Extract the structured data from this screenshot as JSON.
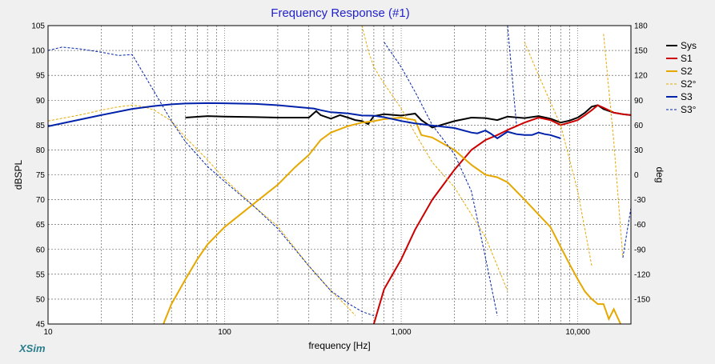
{
  "window": {
    "title": "Frequency Response (#1)",
    "brand": "XSim"
  },
  "chart_data": {
    "type": "line",
    "title": "Frequency Response (#1)",
    "xlabel": "frequency [Hz]",
    "ylabel": "dBSPL",
    "y2label": "deg",
    "xscale": "log",
    "xlim": [
      10,
      20000
    ],
    "ylim": [
      45,
      105
    ],
    "y2lim": [
      -180,
      180
    ],
    "grid": true,
    "legend_position": "right",
    "x_tick_labels": [
      {
        "x": 10,
        "label": "10"
      },
      {
        "x": 100,
        "label": "100"
      },
      {
        "x": 1000,
        "label": "1,000"
      },
      {
        "x": 10000,
        "label": "10,000"
      }
    ],
    "y_ticks": [
      45,
      50,
      55,
      60,
      65,
      70,
      75,
      80,
      85,
      90,
      95,
      100,
      105
    ],
    "y2_ticks": [
      -150,
      -120,
      -90,
      -60,
      -30,
      0,
      30,
      60,
      90,
      120,
      150,
      180
    ],
    "series": [
      {
        "name": "Sys",
        "color": "#000000",
        "style": "solid",
        "axis": "left",
        "x": [
          10,
          20,
          40,
          60,
          80,
          100,
          150,
          200,
          300,
          330,
          350,
          400,
          450,
          500,
          550,
          600,
          650,
          700,
          800,
          1000,
          1200,
          1300,
          1500,
          2000,
          2500,
          3000,
          3500,
          4000,
          5000,
          6000,
          7000,
          8000,
          9000,
          10000,
          11000,
          12000,
          13000,
          14000,
          16000,
          18000,
          20000
        ],
        "y": [
          null,
          null,
          null,
          86.5,
          86.8,
          86.7,
          86.6,
          86.5,
          86.5,
          87.8,
          87.0,
          86.3,
          87.0,
          86.5,
          86.0,
          85.8,
          85.2,
          86.8,
          87.2,
          86.9,
          87.3,
          86.0,
          84.5,
          85.8,
          86.5,
          86.4,
          86.0,
          86.7,
          86.4,
          86.8,
          86.3,
          85.5,
          85.9,
          86.5,
          87.5,
          88.7,
          89.0,
          88.2,
          87.5,
          87.2,
          87.0
        ]
      },
      {
        "name": "S1",
        "color": "#cc0000",
        "style": "solid",
        "axis": "left",
        "x": [
          700,
          800,
          1000,
          1200,
          1500,
          2000,
          2500,
          3000,
          3500,
          4000,
          5000,
          6000,
          7000,
          8000,
          9000,
          10000,
          11000,
          12000,
          13000,
          14000,
          16000,
          18000,
          20000
        ],
        "y": [
          45,
          52,
          58,
          64,
          70,
          76,
          80,
          82,
          83,
          84,
          85.5,
          86.5,
          86,
          85,
          85.5,
          86,
          87,
          88,
          89,
          88.5,
          87.5,
          87.2,
          87
        ]
      },
      {
        "name": "S2",
        "color": "#e6a800",
        "style": "solid",
        "axis": "left",
        "x": [
          45,
          50,
          60,
          70,
          80,
          100,
          150,
          200,
          250,
          300,
          350,
          400,
          500,
          600,
          700,
          800,
          1000,
          1200,
          1300,
          1500,
          2000,
          2500,
          3000,
          3500,
          4000,
          5000,
          6000,
          7000,
          8000,
          9000,
          10000,
          11000,
          12000,
          13000,
          14000,
          15000,
          16000,
          18000,
          20000
        ],
        "y": [
          45,
          49,
          54,
          58,
          61,
          64.5,
          69.5,
          73,
          76.5,
          79,
          82,
          83.5,
          84.8,
          85.5,
          85.8,
          86.2,
          86.5,
          86,
          83,
          82.5,
          80,
          77,
          75,
          74.5,
          73.5,
          70,
          67,
          64.5,
          60.5,
          57,
          54,
          51.5,
          50,
          49,
          49,
          46,
          48,
          44,
          41
        ]
      },
      {
        "name": "S2°",
        "color": "#e6a800",
        "style": "dashed",
        "axis": "right",
        "x": [
          10,
          15,
          20,
          25,
          30,
          35,
          40,
          50,
          60,
          80,
          100,
          150,
          200,
          300,
          400,
          500,
          550,
          600,
          650,
          700,
          800,
          1000,
          1200,
          1500,
          2000,
          3000,
          4000,
          5000,
          6000,
          8000,
          10000,
          12000,
          14000,
          16000,
          18000,
          20000
        ],
        "y": [
          65,
          72,
          78,
          82,
          84,
          82,
          78,
          65,
          45,
          18,
          -5,
          -40,
          -62,
          -110,
          -140,
          -160,
          -170,
          180,
          150,
          130,
          110,
          80,
          50,
          15,
          -15,
          -75,
          -140,
          160,
          120,
          60,
          -20,
          -110,
          170,
          40,
          -100,
          160
        ]
      },
      {
        "name": "S3",
        "color": "#0022aa",
        "style": "solid",
        "axis": "right",
        "x": [
          10,
          20,
          30,
          40,
          50,
          60,
          80,
          100,
          150,
          200,
          250,
          300,
          320,
          350,
          400,
          500,
          600,
          700,
          800,
          1000,
          1200,
          1500,
          2000,
          2500,
          2700,
          3000,
          3200,
          3500,
          4000,
          4500,
          5000,
          5500,
          6000,
          6500,
          7000,
          8000
        ],
        "y": [
          58.5,
          72,
          79.5,
          83,
          85,
          86,
          86.5,
          86.3,
          85.5,
          84,
          82,
          80.5,
          80,
          78,
          75.5,
          74,
          71.5,
          71.3,
          69.5,
          65,
          62,
          59.5,
          56.5,
          51,
          50,
          53.5,
          50,
          44,
          52,
          49,
          48,
          48,
          51,
          49,
          48,
          44
        ]
      },
      {
        "name": "S3°",
        "color": "#0022aa",
        "style": "dashed",
        "axis": "right",
        "x": [
          10,
          12,
          15,
          20,
          25,
          30,
          40,
          50,
          60,
          80,
          100,
          150,
          200,
          300,
          400,
          500,
          600,
          700,
          800,
          1000,
          1200,
          1500,
          2000,
          2500,
          3000,
          3500,
          4000,
          4500,
          5000,
          6000,
          7000,
          8000,
          9000,
          10000,
          11000,
          12000,
          14000,
          16000,
          18000,
          20000
        ],
        "y": [
          150,
          154,
          152,
          148,
          144,
          145,
          100,
          65,
          40,
          10,
          -8,
          -40,
          -65,
          -110,
          -140,
          -155,
          -165,
          -170,
          160,
          130,
          100,
          60,
          25,
          -20,
          -100,
          -170,
          180,
          60,
          -160,
          120,
          -110,
          170,
          -120,
          150,
          -100,
          160,
          -140,
          170,
          -100,
          -40
        ]
      }
    ]
  }
}
